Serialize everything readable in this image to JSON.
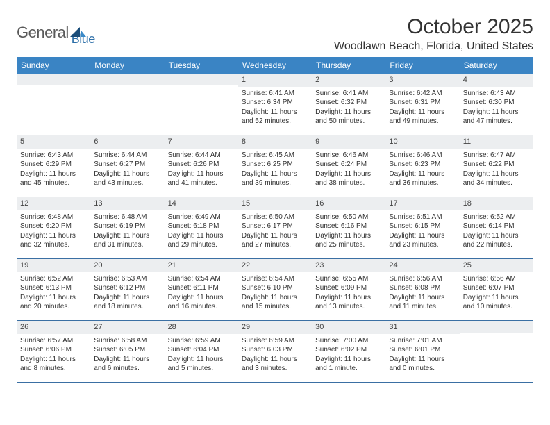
{
  "logo": {
    "text1": "General",
    "text2": "Blue",
    "text1_color": "#6a6a6a",
    "text2_color": "#2d6fa8",
    "shape_dark": "#1a4d7a",
    "shape_light": "#3a8ac8"
  },
  "title": "October 2025",
  "location": "Woodlawn Beach, Florida, United States",
  "colors": {
    "header_bg": "#3a84c4",
    "header_text": "#ffffff",
    "daynum_bg": "#eceef0",
    "week_border": "#3a6fa3",
    "text": "#333333"
  },
  "fonts": {
    "title_size": 30,
    "location_size": 16,
    "dow_size": 12,
    "daynum_size": 11,
    "body_size": 10
  },
  "dow": [
    "Sunday",
    "Monday",
    "Tuesday",
    "Wednesday",
    "Thursday",
    "Friday",
    "Saturday"
  ],
  "weeks": [
    [
      {
        "n": "",
        "lines": []
      },
      {
        "n": "",
        "lines": []
      },
      {
        "n": "",
        "lines": []
      },
      {
        "n": "1",
        "lines": [
          "Sunrise: 6:41 AM",
          "Sunset: 6:34 PM",
          "Daylight: 11 hours",
          "and 52 minutes."
        ]
      },
      {
        "n": "2",
        "lines": [
          "Sunrise: 6:41 AM",
          "Sunset: 6:32 PM",
          "Daylight: 11 hours",
          "and 50 minutes."
        ]
      },
      {
        "n": "3",
        "lines": [
          "Sunrise: 6:42 AM",
          "Sunset: 6:31 PM",
          "Daylight: 11 hours",
          "and 49 minutes."
        ]
      },
      {
        "n": "4",
        "lines": [
          "Sunrise: 6:43 AM",
          "Sunset: 6:30 PM",
          "Daylight: 11 hours",
          "and 47 minutes."
        ]
      }
    ],
    [
      {
        "n": "5",
        "lines": [
          "Sunrise: 6:43 AM",
          "Sunset: 6:29 PM",
          "Daylight: 11 hours",
          "and 45 minutes."
        ]
      },
      {
        "n": "6",
        "lines": [
          "Sunrise: 6:44 AM",
          "Sunset: 6:27 PM",
          "Daylight: 11 hours",
          "and 43 minutes."
        ]
      },
      {
        "n": "7",
        "lines": [
          "Sunrise: 6:44 AM",
          "Sunset: 6:26 PM",
          "Daylight: 11 hours",
          "and 41 minutes."
        ]
      },
      {
        "n": "8",
        "lines": [
          "Sunrise: 6:45 AM",
          "Sunset: 6:25 PM",
          "Daylight: 11 hours",
          "and 39 minutes."
        ]
      },
      {
        "n": "9",
        "lines": [
          "Sunrise: 6:46 AM",
          "Sunset: 6:24 PM",
          "Daylight: 11 hours",
          "and 38 minutes."
        ]
      },
      {
        "n": "10",
        "lines": [
          "Sunrise: 6:46 AM",
          "Sunset: 6:23 PM",
          "Daylight: 11 hours",
          "and 36 minutes."
        ]
      },
      {
        "n": "11",
        "lines": [
          "Sunrise: 6:47 AM",
          "Sunset: 6:22 PM",
          "Daylight: 11 hours",
          "and 34 minutes."
        ]
      }
    ],
    [
      {
        "n": "12",
        "lines": [
          "Sunrise: 6:48 AM",
          "Sunset: 6:20 PM",
          "Daylight: 11 hours",
          "and 32 minutes."
        ]
      },
      {
        "n": "13",
        "lines": [
          "Sunrise: 6:48 AM",
          "Sunset: 6:19 PM",
          "Daylight: 11 hours",
          "and 31 minutes."
        ]
      },
      {
        "n": "14",
        "lines": [
          "Sunrise: 6:49 AM",
          "Sunset: 6:18 PM",
          "Daylight: 11 hours",
          "and 29 minutes."
        ]
      },
      {
        "n": "15",
        "lines": [
          "Sunrise: 6:50 AM",
          "Sunset: 6:17 PM",
          "Daylight: 11 hours",
          "and 27 minutes."
        ]
      },
      {
        "n": "16",
        "lines": [
          "Sunrise: 6:50 AM",
          "Sunset: 6:16 PM",
          "Daylight: 11 hours",
          "and 25 minutes."
        ]
      },
      {
        "n": "17",
        "lines": [
          "Sunrise: 6:51 AM",
          "Sunset: 6:15 PM",
          "Daylight: 11 hours",
          "and 23 minutes."
        ]
      },
      {
        "n": "18",
        "lines": [
          "Sunrise: 6:52 AM",
          "Sunset: 6:14 PM",
          "Daylight: 11 hours",
          "and 22 minutes."
        ]
      }
    ],
    [
      {
        "n": "19",
        "lines": [
          "Sunrise: 6:52 AM",
          "Sunset: 6:13 PM",
          "Daylight: 11 hours",
          "and 20 minutes."
        ]
      },
      {
        "n": "20",
        "lines": [
          "Sunrise: 6:53 AM",
          "Sunset: 6:12 PM",
          "Daylight: 11 hours",
          "and 18 minutes."
        ]
      },
      {
        "n": "21",
        "lines": [
          "Sunrise: 6:54 AM",
          "Sunset: 6:11 PM",
          "Daylight: 11 hours",
          "and 16 minutes."
        ]
      },
      {
        "n": "22",
        "lines": [
          "Sunrise: 6:54 AM",
          "Sunset: 6:10 PM",
          "Daylight: 11 hours",
          "and 15 minutes."
        ]
      },
      {
        "n": "23",
        "lines": [
          "Sunrise: 6:55 AM",
          "Sunset: 6:09 PM",
          "Daylight: 11 hours",
          "and 13 minutes."
        ]
      },
      {
        "n": "24",
        "lines": [
          "Sunrise: 6:56 AM",
          "Sunset: 6:08 PM",
          "Daylight: 11 hours",
          "and 11 minutes."
        ]
      },
      {
        "n": "25",
        "lines": [
          "Sunrise: 6:56 AM",
          "Sunset: 6:07 PM",
          "Daylight: 11 hours",
          "and 10 minutes."
        ]
      }
    ],
    [
      {
        "n": "26",
        "lines": [
          "Sunrise: 6:57 AM",
          "Sunset: 6:06 PM",
          "Daylight: 11 hours",
          "and 8 minutes."
        ]
      },
      {
        "n": "27",
        "lines": [
          "Sunrise: 6:58 AM",
          "Sunset: 6:05 PM",
          "Daylight: 11 hours",
          "and 6 minutes."
        ]
      },
      {
        "n": "28",
        "lines": [
          "Sunrise: 6:59 AM",
          "Sunset: 6:04 PM",
          "Daylight: 11 hours",
          "and 5 minutes."
        ]
      },
      {
        "n": "29",
        "lines": [
          "Sunrise: 6:59 AM",
          "Sunset: 6:03 PM",
          "Daylight: 11 hours",
          "and 3 minutes."
        ]
      },
      {
        "n": "30",
        "lines": [
          "Sunrise: 7:00 AM",
          "Sunset: 6:02 PM",
          "Daylight: 11 hours",
          "and 1 minute."
        ]
      },
      {
        "n": "31",
        "lines": [
          "Sunrise: 7:01 AM",
          "Sunset: 6:01 PM",
          "Daylight: 11 hours",
          "and 0 minutes."
        ]
      },
      {
        "n": "",
        "lines": []
      }
    ]
  ]
}
